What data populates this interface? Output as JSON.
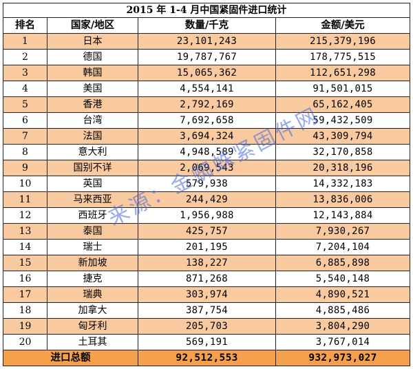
{
  "title": "2015 年 1-4 月中国紧固件进口统计",
  "headers": {
    "rank": "排名",
    "country": "国家/地区",
    "quantity": "数量/千克",
    "amount": "金额/美元"
  },
  "rows": [
    {
      "rank": "1",
      "country": "日本",
      "quantity": "23,101,243",
      "amount": "215,379,196"
    },
    {
      "rank": "2",
      "country": "德国",
      "quantity": "19,787,767",
      "amount": "178,775,515"
    },
    {
      "rank": "3",
      "country": "韩国",
      "quantity": "15,065,362",
      "amount": "112,651,298"
    },
    {
      "rank": "4",
      "country": "美国",
      "quantity": "4,554,141",
      "amount": "91,501,015"
    },
    {
      "rank": "5",
      "country": "香港",
      "quantity": "2,792,169",
      "amount": "65,162,405"
    },
    {
      "rank": "6",
      "country": "台湾",
      "quantity": "7,692,658",
      "amount": "59,432,509"
    },
    {
      "rank": "7",
      "country": "法国",
      "quantity": "3,694,324",
      "amount": "43,309,794"
    },
    {
      "rank": "8",
      "country": "意大利",
      "quantity": "4,948,589",
      "amount": "32,170,858"
    },
    {
      "rank": "9",
      "country": "国别不详",
      "quantity": "2,069,543",
      "amount": "20,318,196"
    },
    {
      "rank": "10",
      "country": "英国",
      "quantity": "579,938",
      "amount": "14,332,183"
    },
    {
      "rank": "11",
      "country": "马来西亚",
      "quantity": "244,429",
      "amount": "13,836,006"
    },
    {
      "rank": "12",
      "country": "西班牙",
      "quantity": "1,956,988",
      "amount": "12,143,884"
    },
    {
      "rank": "13",
      "country": "泰国",
      "quantity": "425,757",
      "amount": "7,930,267"
    },
    {
      "rank": "14",
      "country": "瑞士",
      "quantity": "201,195",
      "amount": "7,204,104"
    },
    {
      "rank": "15",
      "country": "新加坡",
      "quantity": "138,227",
      "amount": "6,885,898"
    },
    {
      "rank": "16",
      "country": "捷克",
      "quantity": "871,268",
      "amount": "5,540,148"
    },
    {
      "rank": "17",
      "country": "瑞典",
      "quantity": "303,974",
      "amount": "4,890,521"
    },
    {
      "rank": "18",
      "country": "加拿大",
      "quantity": "387,754",
      "amount": "4,885,486"
    },
    {
      "rank": "19",
      "country": "匈牙利",
      "quantity": "205,703",
      "amount": "3,804,290"
    },
    {
      "rank": "20",
      "country": "土耳其",
      "quantity": "569,191",
      "amount": "3,767,014"
    }
  ],
  "total": {
    "label": "进口总额",
    "quantity": "92,512,553",
    "amount": "932,973,027"
  },
  "watermark": "来源：金蜘蛛紧固件网",
  "colors": {
    "odd_row": "#f9c9a0",
    "even_row": "#ffffff",
    "total_row": "#f5a04a",
    "watermark": "#4664dc"
  }
}
